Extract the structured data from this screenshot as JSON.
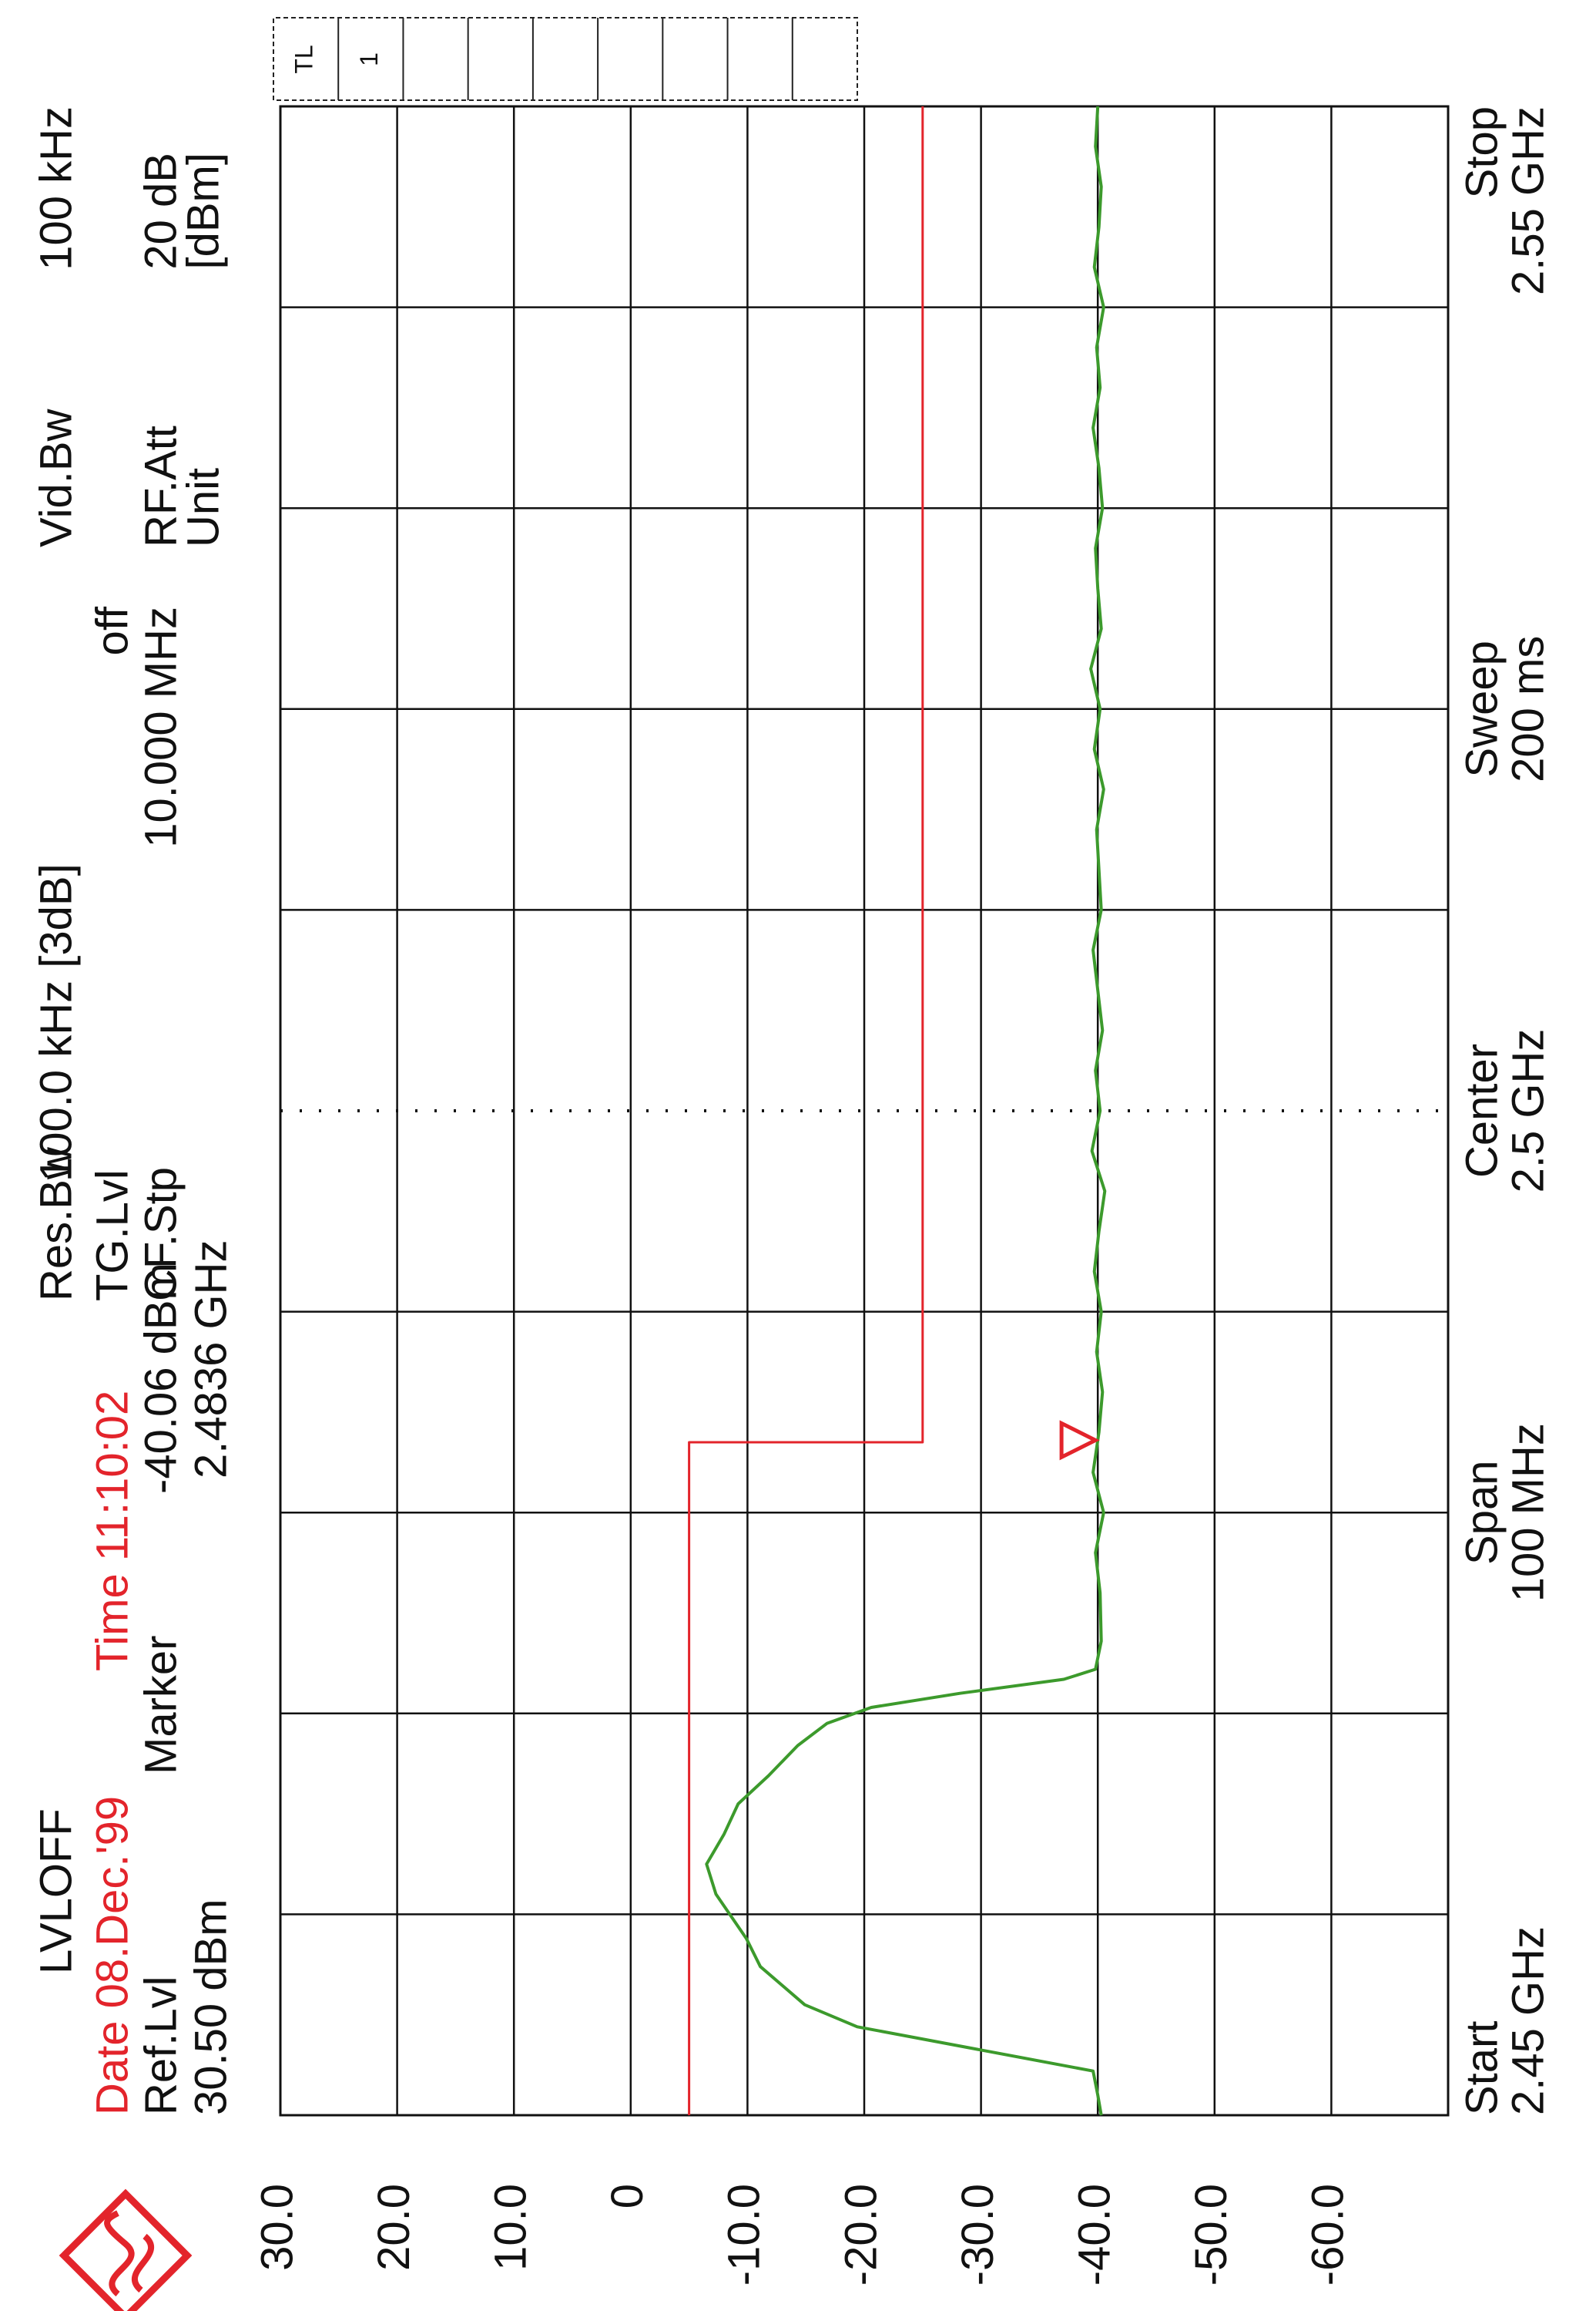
{
  "chart_data": {
    "type": "line",
    "header": {
      "level_mode": "LVLOFF",
      "date": "Date 08.Dec.'99",
      "time": "Time 11:10:02",
      "ref_level_label": "Ref.Lvl",
      "ref_level": "30.50 dBm",
      "marker_label": "Marker",
      "res_bw_label": "Res.Bw",
      "res_bw": "100.0 kHz [3dB]",
      "tg_level_label": "TG.Lvl",
      "tg_level": "off",
      "cf_step_label": "CF.Stp",
      "cf_step": "10.000 MHz",
      "vid_bw_label": "Vid.Bw",
      "vid_bw": "100 kHz",
      "rf_att_label": "RF.Att",
      "rf_att": "20 dB",
      "unit_label": "Unit",
      "unit": "[dBm]"
    },
    "footer": {
      "start_label": "Start",
      "start": "2.45 GHz",
      "span_label": "Span",
      "span": "100 MHz",
      "center_label": "Center",
      "center": "2.5 GHz",
      "sweep_label": "Sweep",
      "sweep": "200 ms",
      "stop_label": "Stop",
      "stop": "2.55 GHz"
    },
    "limit_box": [
      "TL",
      "1"
    ],
    "xlim": [
      2.45,
      2.55
    ],
    "xticks": [
      2.45,
      2.46,
      2.47,
      2.48,
      2.49,
      2.5,
      2.51,
      2.52,
      2.53,
      2.54,
      2.55
    ],
    "ylim": [
      -70,
      30
    ],
    "yticks": [
      {
        "value": 30,
        "label": "30.0"
      },
      {
        "value": 20,
        "label": "20.0"
      },
      {
        "value": 10,
        "label": "10.0"
      },
      0,
      {
        "value": -10,
        "label": "-10.0"
      },
      {
        "value": -20,
        "label": "-20.0"
      },
      {
        "value": -30,
        "label": "-30.0"
      },
      {
        "value": -40,
        "label": "-40.0"
      },
      {
        "value": -50,
        "label": "-50.0"
      },
      {
        "value": -60,
        "label": "-60.0"
      },
      -70
    ],
    "grid": true,
    "series": [
      {
        "color": "#3c9a2c",
        "x": [
          2.45,
          2.451,
          2.4522,
          2.4533,
          2.4544,
          2.4555,
          2.4574,
          2.4588,
          2.461,
          2.4625,
          2.464,
          2.4655,
          2.4669,
          2.4684,
          2.4695,
          2.4703,
          2.471,
          2.4717,
          2.4722,
          2.4736,
          2.476,
          2.478,
          2.48,
          2.482,
          2.484,
          2.486,
          2.488,
          2.49,
          2.492,
          2.494,
          2.496,
          2.498,
          2.5,
          2.502,
          2.504,
          2.506,
          2.508,
          2.51,
          2.512,
          2.514,
          2.516,
          2.518,
          2.52,
          2.522,
          2.524,
          2.526,
          2.528,
          2.53,
          2.532,
          2.534,
          2.536,
          2.538,
          2.54,
          2.542,
          2.544,
          2.546,
          2.548,
          2.55
        ],
        "values": [
          -40.3,
          -40.0,
          -39.6,
          -29.5,
          -19.4,
          -14.9,
          -11.1,
          -9.9,
          -7.3,
          -6.5,
          -8.0,
          -9.2,
          -11.8,
          -14.3,
          -16.8,
          -20.6,
          -28.2,
          -37.1,
          -39.8,
          -40.3,
          -40.2,
          -39.8,
          -40.5,
          -39.6,
          -40.1,
          -40.4,
          -39.9,
          -40.3,
          -39.7,
          -40.1,
          -40.6,
          -39.5,
          -40.2,
          -39.8,
          -40.4,
          -40.0,
          -39.6,
          -40.3,
          -40.1,
          -39.9,
          -40.5,
          -39.7,
          -40.2,
          -39.4,
          -40.3,
          -40.0,
          -39.8,
          -40.4,
          -40.1,
          -39.6,
          -40.2,
          -39.9,
          -40.5,
          -39.7,
          -40.1,
          -40.3,
          -39.8,
          -40.0
        ]
      },
      {
        "color": "#e3242b",
        "x": [
          2.45,
          2.4835,
          2.4835,
          2.55
        ],
        "values": [
          -5,
          -5,
          -25,
          -25
        ]
      }
    ],
    "marker": {
      "x": 2.4836,
      "y": -40.06,
      "x_label": "2.4836 GHz",
      "y_label": "-40.06 dBm",
      "color": "#e3242b"
    }
  }
}
